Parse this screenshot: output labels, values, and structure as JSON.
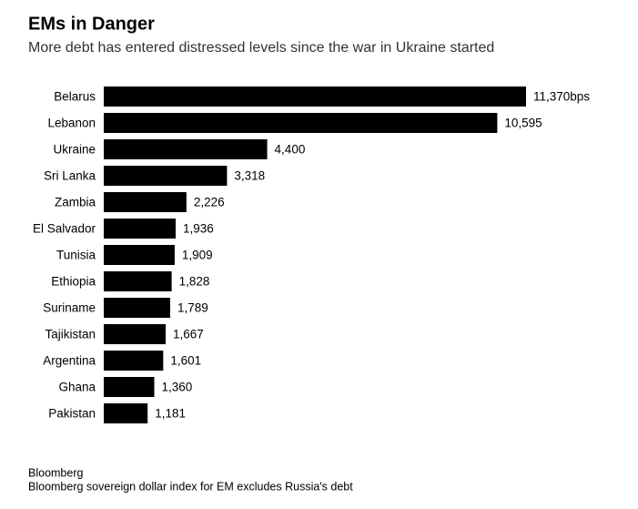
{
  "chart_data": {
    "type": "bar",
    "orientation": "horizontal",
    "title": "EMs in Danger",
    "subtitle": "More debt has entered distressed levels since the war in Ukraine started",
    "categories": [
      "Belarus",
      "Lebanon",
      "Ukraine",
      "Sri Lanka",
      "Zambia",
      "El Salvador",
      "Tunisia",
      "Ethiopia",
      "Suriname",
      "Tajikistan",
      "Argentina",
      "Ghana",
      "Pakistan"
    ],
    "values": [
      11370,
      10595,
      4400,
      3318,
      2226,
      1936,
      1909,
      1828,
      1789,
      1667,
      1601,
      1360,
      1181
    ],
    "value_labels": [
      "11,370bps",
      "10,595",
      "4,400",
      "3,318",
      "2,226",
      "1,936",
      "1,909",
      "1,828",
      "1,789",
      "1,667",
      "1,601",
      "1,360",
      "1,181"
    ],
    "color": "#000000",
    "source": "Bloomberg",
    "note": "Bloomberg sovereign dollar index for EM excludes Russia's debt"
  }
}
